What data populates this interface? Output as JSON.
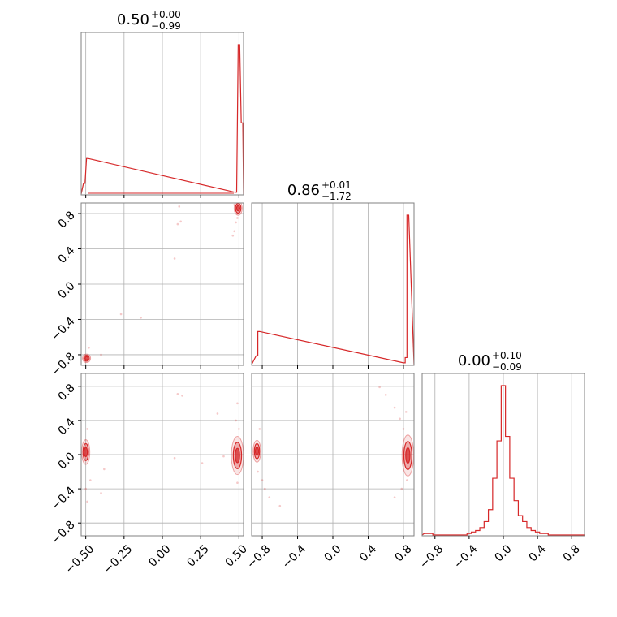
{
  "chart_data": {
    "type": "corner",
    "color": "#d62728",
    "grid": true,
    "parameters": [
      {
        "title": "0.50",
        "sup": "+0.00",
        "sub": "−0.99"
      },
      {
        "title": "0.86",
        "sup": "+0.01",
        "sub": "−1.72"
      },
      {
        "title": "0.00",
        "sup": "+0.10",
        "sub": "−0.09"
      }
    ],
    "axes": [
      {
        "range": [
          -0.53,
          0.53
        ],
        "ticks": [
          -0.5,
          -0.25,
          0.0,
          0.25,
          0.5
        ],
        "tick_labels": [
          "−0.50",
          "−0.25",
          "0.00",
          "0.25",
          "0.50"
        ]
      },
      {
        "range": [
          -0.92,
          0.92
        ],
        "ticks": [
          -0.8,
          -0.4,
          0.0,
          0.4,
          0.8
        ],
        "tick_labels": [
          "−0.8",
          "−0.4",
          "0.0",
          "0.4",
          "0.8"
        ]
      },
      {
        "range": [
          -0.95,
          0.95
        ],
        "ticks": [
          -0.8,
          -0.4,
          0.0,
          0.4,
          0.8
        ],
        "tick_labels": [
          "−0.8",
          "−0.4",
          "0.0",
          "0.4",
          "0.8"
        ]
      }
    ],
    "histograms": [
      {
        "x": [
          -0.51,
          -0.49,
          0.48,
          0.5,
          0.52
        ],
        "widths": [
          0.01,
          0.01,
          0.01,
          0.01,
          0.01
        ],
        "values": [
          0.3,
          1.0,
          0.05,
          4.2,
          2.0
        ],
        "note_background": 0.01
      },
      {
        "x": [
          -0.86,
          -0.84,
          0.81,
          0.83,
          0.85
        ],
        "widths": [
          0.02,
          0.02,
          0.02,
          0.02,
          0.02
        ],
        "values": [
          0.25,
          0.95,
          0.05,
          0.2,
          4.3
        ]
      },
      {
        "x": [
          -0.9,
          -0.85,
          -0.8,
          -0.75,
          -0.7,
          -0.65,
          -0.6,
          -0.55,
          -0.5,
          -0.45,
          -0.4,
          -0.35,
          -0.3,
          -0.25,
          -0.2,
          -0.15,
          -0.1,
          -0.05,
          0.0,
          0.05,
          0.1,
          0.15,
          0.2,
          0.25,
          0.3,
          0.35,
          0.4,
          0.45,
          0.5,
          0.55,
          0.6,
          0.65,
          0.7,
          0.75,
          0.8,
          0.85,
          0.9
        ],
        "widths": [
          0.05
        ],
        "values": [
          0.01,
          0.01,
          0.0,
          0.0,
          0.0,
          0.0,
          0.0,
          0.0,
          0.0,
          0.0,
          0.01,
          0.02,
          0.03,
          0.05,
          0.09,
          0.17,
          0.38,
          0.63,
          1.0,
          0.66,
          0.38,
          0.23,
          0.13,
          0.09,
          0.05,
          0.03,
          0.02,
          0.01,
          0.01,
          0.0,
          0.0,
          0.0,
          0.0,
          0.0,
          0.0,
          0.0,
          0.0
        ]
      }
    ],
    "pairs": [
      {
        "row": 1,
        "col": 0,
        "clusters": [
          {
            "x": 0.495,
            "y": 0.86,
            "rx": 0.012,
            "ry": 0.05
          },
          {
            "x": -0.495,
            "y": -0.84,
            "rx": 0.012,
            "ry": 0.03
          }
        ],
        "scatter": [
          [
            0.1,
            0.68
          ],
          [
            0.12,
            0.71
          ],
          [
            0.08,
            0.29
          ],
          [
            -0.27,
            -0.34
          ],
          [
            -0.14,
            -0.38
          ],
          [
            0.46,
            0.55
          ],
          [
            0.47,
            0.6
          ],
          [
            0.48,
            0.7
          ],
          [
            0.49,
            0.75
          ],
          [
            0.47,
            0.9
          ],
          [
            -0.48,
            -0.72
          ],
          [
            -0.4,
            -0.8
          ],
          [
            0.11,
            0.88
          ],
          [
            0.49,
            0.8
          ]
        ]
      },
      {
        "row": 2,
        "col": 0,
        "clusters": [
          {
            "x": 0.49,
            "y": -0.01,
            "rx": 0.018,
            "ry": 0.14
          },
          {
            "x": -0.5,
            "y": 0.03,
            "rx": 0.012,
            "ry": 0.09
          }
        ],
        "scatter": [
          [
            0.1,
            0.71
          ],
          [
            0.13,
            0.69
          ],
          [
            0.08,
            -0.04
          ],
          [
            0.4,
            -0.02
          ],
          [
            0.36,
            0.48
          ],
          [
            0.48,
            0.4
          ],
          [
            0.49,
            0.6
          ],
          [
            -0.5,
            -0.4
          ],
          [
            -0.49,
            -0.55
          ],
          [
            -0.4,
            -0.45
          ],
          [
            -0.38,
            -0.17
          ],
          [
            -0.47,
            -0.3
          ],
          [
            0.49,
            -0.33
          ],
          [
            0.5,
            0.3
          ],
          [
            -0.49,
            0.3
          ],
          [
            0.26,
            -0.1
          ]
        ]
      },
      {
        "row": 2,
        "col": 1,
        "clusters": [
          {
            "x": 0.85,
            "y": -0.01,
            "rx": 0.03,
            "ry": 0.15
          },
          {
            "x": -0.86,
            "y": 0.04,
            "rx": 0.02,
            "ry": 0.08
          }
        ],
        "scatter": [
          [
            0.53,
            0.79
          ],
          [
            0.6,
            0.7
          ],
          [
            0.7,
            0.55
          ],
          [
            0.76,
            0.42
          ],
          [
            0.8,
            0.3
          ],
          [
            0.7,
            -0.5
          ],
          [
            0.78,
            -0.4
          ],
          [
            -0.8,
            -0.3
          ],
          [
            -0.77,
            -0.4
          ],
          [
            -0.72,
            -0.5
          ],
          [
            -0.6,
            -0.6
          ],
          [
            -0.83,
            0.3
          ],
          [
            -0.85,
            -0.2
          ],
          [
            0.83,
            0.5
          ],
          [
            0.84,
            -0.3
          ]
        ]
      }
    ]
  }
}
